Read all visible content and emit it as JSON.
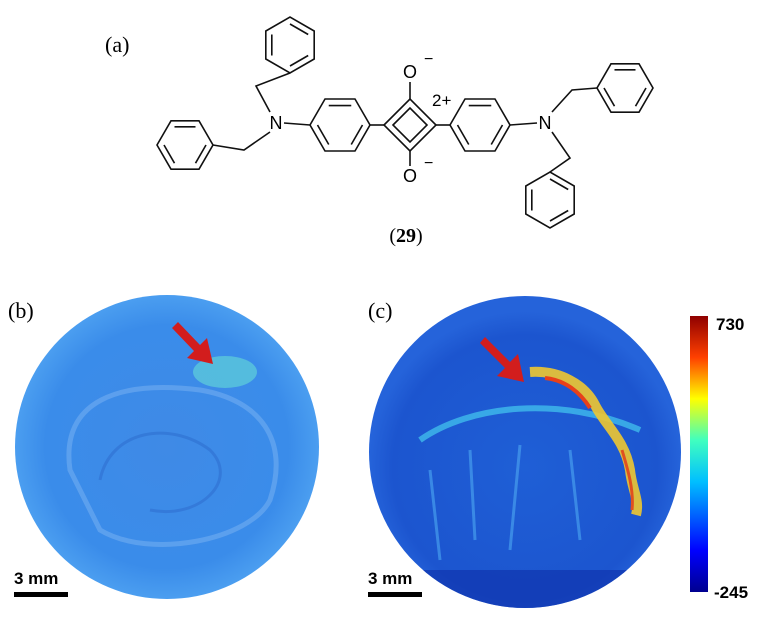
{
  "panels": {
    "a": {
      "label": "(a)",
      "atoms": {
        "oxygen_top": "O",
        "charge_top": "−",
        "oxygen_bottom": "O",
        "charge_bottom": "−",
        "ring_charge": "2+",
        "nitrogen_left": "N",
        "nitrogen_right": "N"
      },
      "compound": {
        "open": "(",
        "number": "29",
        "close": ")"
      }
    },
    "b": {
      "label": "(b)",
      "scale_bar": "3 mm"
    },
    "c": {
      "label": "(c)",
      "scale_bar": "3 mm",
      "colorbar": {
        "max": 730,
        "min": -245
      }
    }
  }
}
